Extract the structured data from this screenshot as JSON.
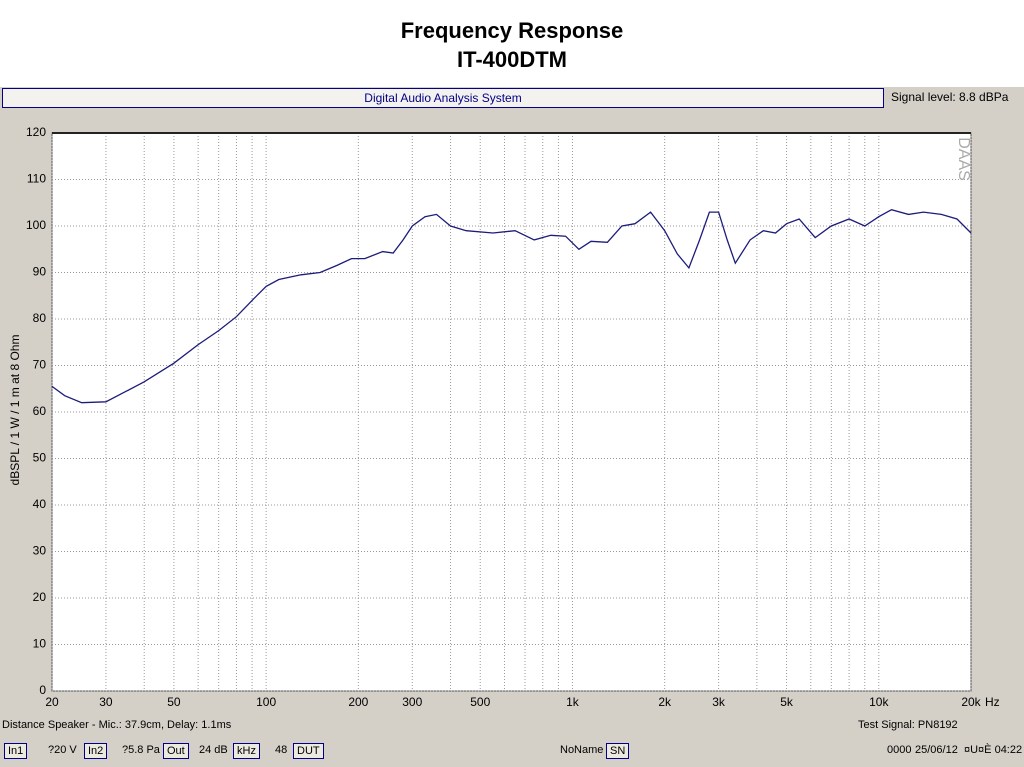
{
  "title": "Frequency Response",
  "subtitle": "IT-400DTM",
  "window": {
    "header": "Digital Audio Analysis System",
    "signal_level": "Signal level:  8.8 dBPa"
  },
  "chart_data": {
    "type": "line",
    "ylabel": "dBSPL / 1 W / 1 m at 8 Ohm",
    "watermark": "DAAS",
    "x_scale": "log",
    "x_unit": "Hz",
    "grid": true,
    "xlim": [
      20,
      20000
    ],
    "xticks": [
      20,
      30,
      50,
      100,
      200,
      300,
      500,
      {
        "value": 1000,
        "label": "1k"
      },
      {
        "value": 2000,
        "label": "2k"
      },
      {
        "value": 3000,
        "label": "3k"
      },
      {
        "value": 5000,
        "label": "5k"
      },
      {
        "value": 10000,
        "label": "10k"
      },
      {
        "value": 20000,
        "label": "20k"
      }
    ],
    "xgrid": [
      20,
      30,
      40,
      50,
      60,
      70,
      80,
      90,
      100,
      200,
      300,
      400,
      500,
      600,
      700,
      800,
      900,
      1000,
      2000,
      3000,
      4000,
      5000,
      6000,
      7000,
      8000,
      9000,
      10000,
      20000
    ],
    "ylim": [
      0,
      120
    ],
    "yticks": [
      0,
      10,
      20,
      30,
      40,
      50,
      60,
      70,
      80,
      90,
      100,
      110,
      120
    ],
    "x": [
      20,
      22,
      25,
      30,
      35,
      40,
      50,
      60,
      70,
      80,
      90,
      100,
      110,
      130,
      150,
      170,
      190,
      210,
      240,
      260,
      280,
      300,
      330,
      360,
      400,
      450,
      550,
      650,
      750,
      850,
      950,
      1050,
      1150,
      1300,
      1450,
      1600,
      1800,
      2000,
      2200,
      2400,
      2600,
      2800,
      3000,
      3200,
      3400,
      3800,
      4200,
      4600,
      5000,
      5500,
      6200,
      7000,
      8000,
      9000,
      10000,
      11000,
      12500,
      14000,
      16000,
      18000,
      20000
    ],
    "series": [
      {
        "color": "#1c1c7a",
        "values": [
          65.5,
          63.5,
          62,
          62.2,
          64.5,
          66.5,
          70.5,
          74.5,
          77.5,
          80.5,
          84,
          87,
          88.5,
          89.5,
          90,
          91.5,
          93,
          93,
          94.5,
          94.2,
          97,
          100,
          102,
          102.5,
          100,
          99,
          98.5,
          99,
          97,
          98,
          97.8,
          95,
          96.7,
          96.5,
          100,
          100.5,
          103,
          99,
          94,
          91,
          97,
          103,
          103,
          97,
          92,
          97,
          99,
          98.5,
          100.5,
          101.5,
          97.5,
          100,
          101.5,
          100,
          102,
          103.5,
          102.5,
          103,
          102.5,
          101.5,
          98.5
        ]
      }
    ]
  },
  "status": {
    "distance": "Distance Speaker - Mic.: 37.9cm, Delay: 1.1ms",
    "test_signal": "Test Signal: PN8192",
    "items": [
      "In1",
      "?20 V",
      "In2",
      "?5.8 Pa",
      "Out",
      "24 dB",
      "kHz",
      "48",
      "DUT",
      "NoName",
      "SN",
      "0000",
      "25/06/12",
      "¤U¤È 04:22"
    ]
  }
}
